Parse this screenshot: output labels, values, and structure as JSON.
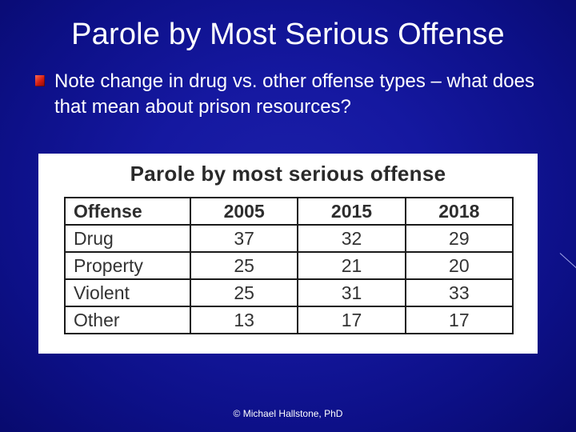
{
  "slide": {
    "title": "Parole by Most Serious Offense",
    "bullet": "Note change in drug vs. other offense types – what does that mean about prison resources?",
    "footer": "© Michael Hallstone, PhD"
  },
  "table": {
    "heading": "Parole by most serious offense",
    "columns": [
      "Offense",
      "2005",
      "2015",
      "2018"
    ],
    "rows": [
      {
        "offense": "Drug",
        "v2005": "37",
        "v2015": "32",
        "v2018": "29"
      },
      {
        "offense": "Property",
        "v2005": "25",
        "v2015": "21",
        "v2018": "20"
      },
      {
        "offense": "Violent",
        "v2005": "25",
        "v2015": "31",
        "v2018": "33"
      },
      {
        "offense": "Other",
        "v2005": "13",
        "v2015": "17",
        "v2018": "17"
      }
    ]
  },
  "colors": {
    "background": "#1518a0",
    "bullet_marker": "#d01a10",
    "panel": "#ffffff"
  }
}
